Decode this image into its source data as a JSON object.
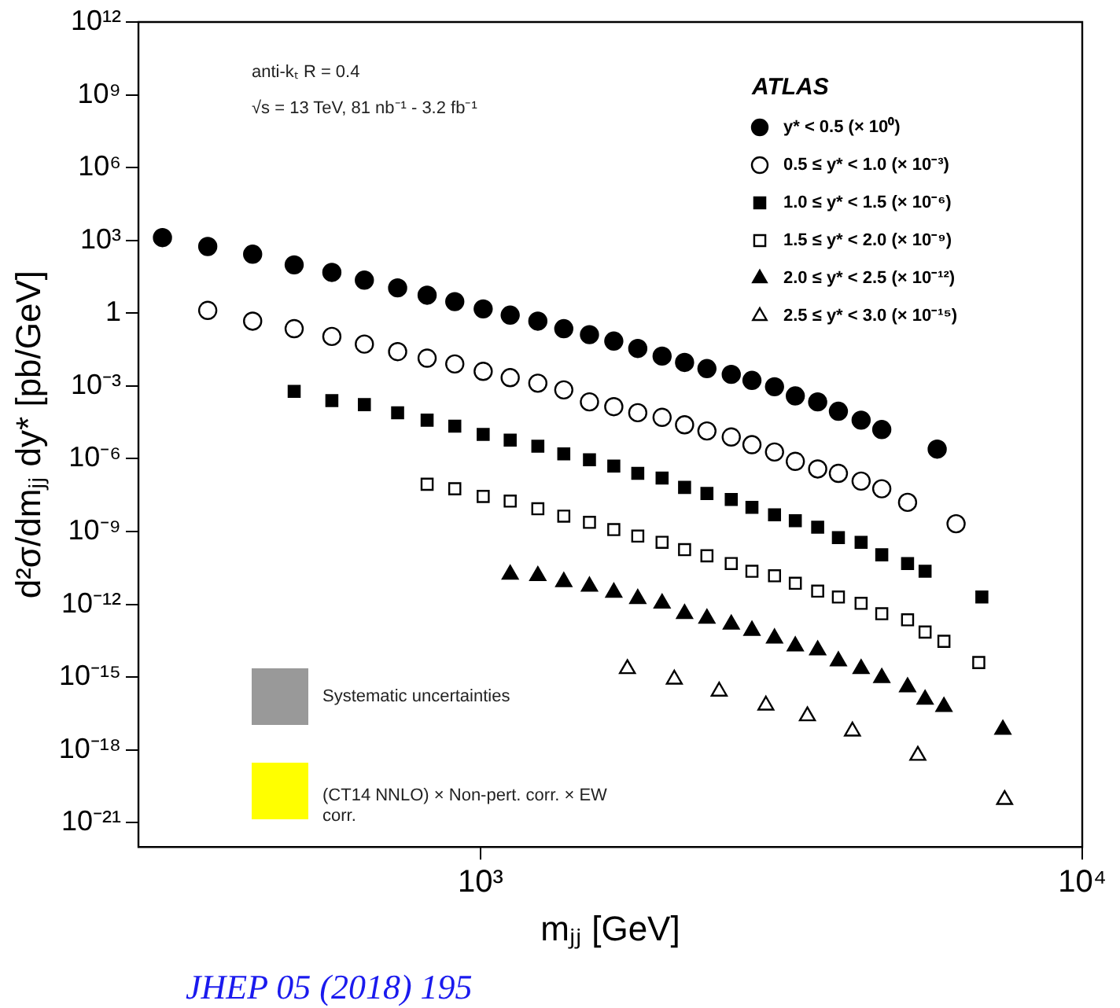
{
  "chart_data": {
    "type": "scatter",
    "xlabel": "mⱼⱼ [GeV]",
    "ylabel": "d²σ/dmⱼⱼ dy* [pb/GeV]",
    "log": "xy",
    "grid": false,
    "legend": "top right",
    "legend_title": "ATLAS",
    "xlim": [
      270,
      10000
    ],
    "xticks": [
      {
        "value": 1000,
        "label": "10³"
      },
      {
        "value": 10000,
        "label": "10⁴"
      }
    ],
    "ylim": [
      1e-22,
      1000000000000.0
    ],
    "yticks": [
      {
        "value": 1000000000000.0,
        "label": "10¹²"
      },
      {
        "value": 1000000000.0,
        "label": "10⁹"
      },
      {
        "value": 1000000.0,
        "label": "10⁶"
      },
      {
        "value": 1000.0,
        "label": "10³"
      },
      1,
      {
        "value": 0.001,
        "label": "10⁻³"
      },
      {
        "value": 1e-06,
        "label": "10⁻⁶"
      },
      {
        "value": 1e-09,
        "label": "10⁻⁹"
      },
      {
        "value": 1e-12,
        "label": "10⁻¹²"
      },
      {
        "value": 1e-15,
        "label": "10⁻¹⁵"
      },
      {
        "value": 1e-18,
        "label": "10⁻¹⁸"
      },
      {
        "value": 1e-21,
        "label": "10⁻²¹"
      }
    ],
    "annotations": [
      "anti-kₜ R = 0.4",
      "√s = 13 TeV, 81 nb⁻¹ - 3.2 fb⁻¹",
      "Systematic uncertainties",
      "(CT14 NNLO) × Non-pert. corr. × EW corr.",
      "JHEP 05 (2018) 195"
    ],
    "series": [
      {
        "name": "y* < 0.5 (× 10⁰)",
        "color": "#000000",
        "marker": "circle",
        "x": [
          296,
          352,
          418,
          490,
          566,
          641,
          728,
          815,
          906,
          1010,
          1120,
          1245,
          1375,
          1517,
          1665,
          1825,
          2003,
          2183,
          2378,
          2610,
          2825,
          3080,
          3335,
          3633,
          3933,
          4290,
          4643,
          5740
        ],
        "values": [
          1300,
          560,
          270,
          98,
          48,
          23,
          11,
          5.5,
          3.0,
          1.5,
          0.83,
          0.47,
          0.23,
          0.13,
          0.071,
          0.035,
          0.017,
          0.0093,
          0.0052,
          0.003,
          0.0017,
          0.00093,
          0.00039,
          0.00022,
          9.1e-05,
          3.9e-05,
          1.6e-05,
          2.5e-06
        ]
      },
      {
        "name": "0.5 ≤ y* < 1.0 (× 10⁻³)",
        "color": "#ffffff",
        "marker": "circle",
        "x": [
          352,
          418,
          490,
          566,
          641,
          728,
          815,
          906,
          1010,
          1120,
          1245,
          1375,
          1517,
          1665,
          1825,
          2003,
          2183,
          2378,
          2610,
          2825,
          3080,
          3335,
          3633,
          3933,
          4290,
          4643,
          5125,
          6170
        ],
        "values": [
          1.3,
          0.47,
          0.23,
          0.11,
          0.053,
          0.026,
          0.014,
          0.0081,
          0.004,
          0.0022,
          0.0013,
          0.00069,
          0.00022,
          0.00014,
          7.9e-05,
          5.1e-05,
          2.5e-05,
          1.4e-05,
          7.9e-06,
          3.8e-06,
          1.9e-06,
          7.8e-07,
          3.8e-07,
          2.5e-07,
          1.2e-07,
          5.8e-08,
          1.6e-08,
          2.1e-09
        ]
      },
      {
        "name": "1.0 ≤ y* < 1.5 (× 10⁻⁶)",
        "color": "#000000",
        "marker": "square",
        "x": [
          490,
          566,
          641,
          728,
          815,
          906,
          1010,
          1120,
          1245,
          1375,
          1517,
          1665,
          1825,
          2003,
          2183,
          2378,
          2610,
          2825,
          3080,
          3335,
          3633,
          3933,
          4290,
          4643,
          5125,
          5480,
          6810
        ],
        "values": [
          0.0006,
          0.00025,
          0.00017,
          7.9e-05,
          3.9e-05,
          2.2e-05,
          1e-05,
          5.9e-06,
          3.3e-06,
          1.6e-06,
          9.1e-07,
          5e-07,
          2.5e-07,
          1.6e-07,
          6.6e-08,
          3.7e-08,
          2.1e-08,
          1e-08,
          4.9e-09,
          2.8e-09,
          1.5e-09,
          5.6e-10,
          3.6e-10,
          1.1e-10,
          4.8e-11,
          2.3e-11,
          2e-12
        ]
      },
      {
        "name": "1.5 ≤ y* < 2.0 (× 10⁻⁹)",
        "color": "#ffffff",
        "marker": "square",
        "x": [
          815,
          906,
          1010,
          1120,
          1245,
          1375,
          1517,
          1665,
          1825,
          2003,
          2183,
          2378,
          2610,
          2825,
          3080,
          3335,
          3633,
          3933,
          4290,
          4643,
          5125,
          5480,
          5890,
          6730
        ],
        "values": [
          8.9e-08,
          5.8e-08,
          2.8e-08,
          1.8e-08,
          8.7e-09,
          4.3e-09,
          2.4e-09,
          1.2e-09,
          6.5e-10,
          3.6e-10,
          1.8e-10,
          1e-10,
          4.8e-11,
          2.3e-11,
          1.5e-11,
          7.4e-12,
          3.5e-12,
          2e-12,
          1.1e-12,
          4.1e-13,
          2.3e-13,
          7.2e-14,
          3e-14,
          4e-15
        ]
      },
      {
        "name": "2.0 ≤ y* < 2.5 (× 10⁻¹²)",
        "color": "#000000",
        "marker": "triangle",
        "x": [
          1120,
          1245,
          1375,
          1517,
          1665,
          1825,
          2003,
          2183,
          2378,
          2610,
          2825,
          3080,
          3335,
          3633,
          3933,
          4290,
          4643,
          5125,
          5480,
          5890,
          7380
        ],
        "values": [
          1.7e-11,
          1.5e-11,
          8.5e-12,
          5.5e-12,
          3.1e-12,
          1.7e-12,
          1.1e-12,
          4.1e-13,
          2.6e-13,
          1.5e-13,
          8.3e-14,
          4e-14,
          1.9e-14,
          1.3e-14,
          4.6e-15,
          2.2e-15,
          9.3e-16,
          3.9e-16,
          1.2e-16,
          6e-17,
          6.9e-18
        ]
      },
      {
        "name": "2.5 ≤ y* < 3.0 (× 10⁻¹⁵)",
        "color": "#ffffff",
        "marker": "triangle",
        "x": [
          1754,
          2099,
          2492,
          2980,
          3493,
          4150,
          5330,
          7430
        ],
        "values": [
          2.2e-15,
          8.1e-16,
          2.6e-16,
          6.9e-17,
          2.5e-17,
          5.9e-18,
          5.9e-19,
          8.9e-21
        ]
      }
    ]
  }
}
